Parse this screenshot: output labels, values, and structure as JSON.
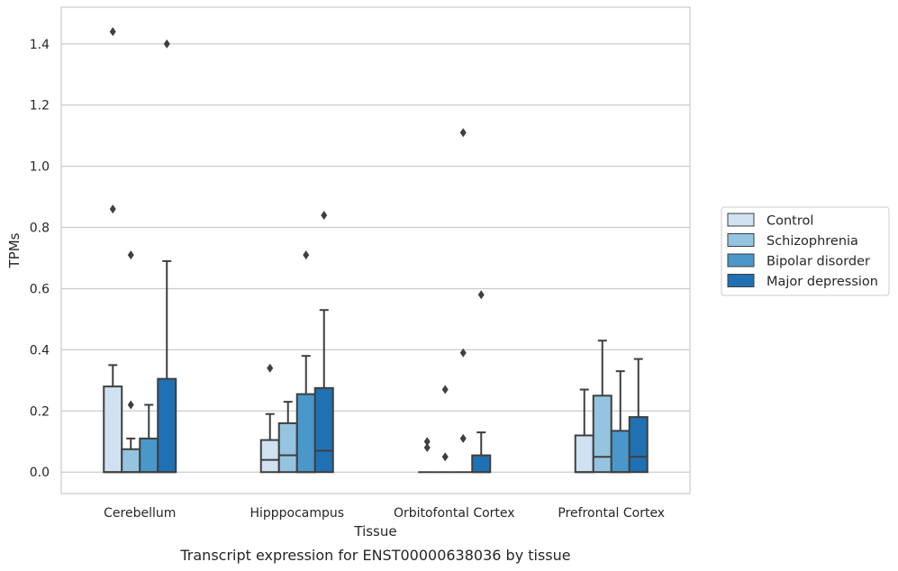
{
  "caption": "Transcript expression for ENST00000638036 by tissue",
  "chart_data": {
    "type": "box",
    "title": "",
    "xlabel": "Tissue",
    "ylabel": "TPMs",
    "ylim": [
      -0.07,
      1.52
    ],
    "yticks": [
      0.0,
      0.2,
      0.4,
      0.6,
      0.8,
      1.0,
      1.2,
      1.4
    ],
    "ytick_labels": [
      "0.0",
      "0.2",
      "0.4",
      "0.6",
      "0.8",
      "1.0",
      "1.2",
      "1.4"
    ],
    "grid": "horizontal",
    "legend_position": "right",
    "categories": [
      "Cerebellum",
      "Hipppocampus",
      "Orbitofontal Cortex",
      "Prefrontal Cortex"
    ],
    "series": [
      {
        "name": "Control",
        "color": "#d0e1f2",
        "boxes": [
          {
            "q1": 0.0,
            "median": 0.0,
            "q3": 0.28,
            "whislo": 0.0,
            "whishi": 0.35,
            "fliers": [
              1.44,
              0.86
            ]
          },
          {
            "q1": 0.0,
            "median": 0.04,
            "q3": 0.105,
            "whislo": 0.0,
            "whishi": 0.19,
            "fliers": [
              0.34
            ]
          },
          {
            "q1": 0.0,
            "median": 0.0,
            "q3": 0.0,
            "whislo": 0.0,
            "whishi": 0.0,
            "fliers": [
              0.1,
              0.08
            ]
          },
          {
            "q1": 0.0,
            "median": 0.0,
            "q3": 0.12,
            "whislo": 0.0,
            "whishi": 0.27,
            "fliers": []
          }
        ]
      },
      {
        "name": "Schizophrenia",
        "color": "#94c4df",
        "boxes": [
          {
            "q1": 0.0,
            "median": 0.0,
            "q3": 0.075,
            "whislo": 0.0,
            "whishi": 0.11,
            "fliers": [
              0.71,
              0.22
            ]
          },
          {
            "q1": 0.0,
            "median": 0.055,
            "q3": 0.16,
            "whislo": 0.0,
            "whishi": 0.23,
            "fliers": []
          },
          {
            "q1": 0.0,
            "median": 0.0,
            "q3": 0.0,
            "whislo": 0.0,
            "whishi": 0.0,
            "fliers": [
              0.27,
              0.05
            ]
          },
          {
            "q1": 0.0,
            "median": 0.05,
            "q3": 0.25,
            "whislo": 0.0,
            "whishi": 0.43,
            "fliers": []
          }
        ]
      },
      {
        "name": "Bipolar disorder",
        "color": "#4a98c9",
        "boxes": [
          {
            "q1": 0.0,
            "median": 0.0,
            "q3": 0.11,
            "whislo": 0.0,
            "whishi": 0.22,
            "fliers": []
          },
          {
            "q1": 0.0,
            "median": 0.0,
            "q3": 0.255,
            "whislo": 0.0,
            "whishi": 0.38,
            "fliers": [
              0.71
            ]
          },
          {
            "q1": 0.0,
            "median": 0.0,
            "q3": 0.0,
            "whislo": 0.0,
            "whishi": 0.0,
            "fliers": [
              1.11,
              0.39,
              0.11
            ]
          },
          {
            "q1": 0.0,
            "median": 0.0,
            "q3": 0.135,
            "whislo": 0.0,
            "whishi": 0.33,
            "fliers": []
          }
        ]
      },
      {
        "name": "Major depression",
        "color": "#2070b4",
        "boxes": [
          {
            "q1": 0.0,
            "median": 0.0,
            "q3": 0.305,
            "whislo": 0.0,
            "whishi": 0.69,
            "fliers": [
              1.4
            ]
          },
          {
            "q1": 0.0,
            "median": 0.07,
            "q3": 0.275,
            "whislo": 0.0,
            "whishi": 0.53,
            "fliers": [
              0.84
            ]
          },
          {
            "q1": 0.0,
            "median": 0.0,
            "q3": 0.055,
            "whislo": 0.0,
            "whishi": 0.13,
            "fliers": [
              0.58
            ]
          },
          {
            "q1": 0.0,
            "median": 0.05,
            "q3": 0.18,
            "whislo": 0.0,
            "whishi": 0.37,
            "fliers": []
          }
        ]
      }
    ]
  }
}
